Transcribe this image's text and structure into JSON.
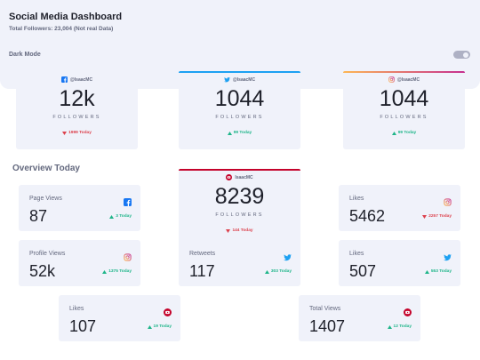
{
  "header": {
    "title": "Social Media Dashboard",
    "subtitle": "Total Followers: 23,004 (Not real Data)",
    "dark_mode_label": "Dark Mode"
  },
  "followers": [
    {
      "handle": "@IsaacMC",
      "count": "12k",
      "label": "FOLLOWERS",
      "change": "1999 Today"
    },
    {
      "handle": "@IsaacMC",
      "count": 1044,
      "label": "FOLLOWERS",
      "change": "99 Today"
    },
    {
      "handle": "@IsaacMC",
      "count": 1044,
      "label": "FOLLOWERS",
      "change": "99 Today"
    },
    {
      "handle": "IsaacMC",
      "count": 8239,
      "label": "FOLLOWERS",
      "change": "144 Today"
    }
  ],
  "overview": {
    "title": "Overview Today",
    "cards": [
      {
        "label": "Page Views",
        "value": 87,
        "change": "3 Today"
      },
      {
        "label": "Profile Views",
        "value": "52k",
        "change": "1375 Today"
      },
      {
        "label": "Retweets",
        "value": 117,
        "change": "303 Today"
      },
      {
        "label": "Likes",
        "value": 5462,
        "change": "2257 Today"
      },
      {
        "label": "Likes",
        "value": 507,
        "change": "553 Today"
      },
      {
        "label": "Likes",
        "value": 107,
        "change": "19 Today"
      },
      {
        "label": "Total Views",
        "value": 1407,
        "change": "12 Today"
      }
    ]
  }
}
